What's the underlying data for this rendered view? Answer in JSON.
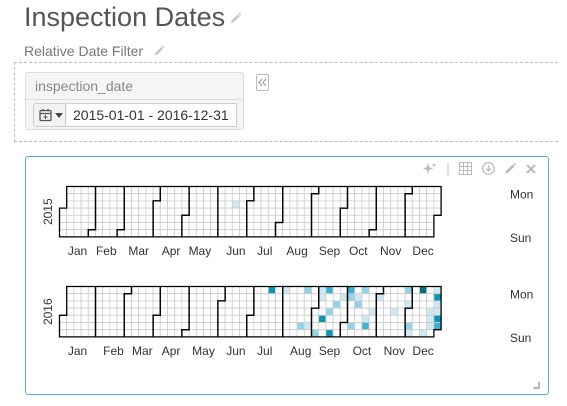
{
  "page": {
    "title": "Inspection Dates"
  },
  "filter": {
    "label": "Relative Date Filter",
    "field_label": "inspection_date",
    "date_range": "2015-01-01 - 2016-12-31"
  },
  "toolbar": {
    "icons": [
      "sparkle-icon",
      "table-icon",
      "download-icon",
      "pencil-icon",
      "close-icon"
    ]
  },
  "chart_data": {
    "type": "heatmap",
    "layout": "calendar",
    "title": "",
    "years": [
      {
        "label": "2015",
        "start_date": "2015-01-01",
        "days": 365,
        "cells": [
          {
            "date": "2015-06-17",
            "level": 1
          }
        ]
      },
      {
        "label": "2016",
        "start_date": "2016-01-01",
        "days": 366,
        "cells": [
          {
            "date": "2016-07-18",
            "level": 4
          },
          {
            "date": "2016-08-01",
            "level": 1
          },
          {
            "date": "2016-08-20",
            "level": 2
          },
          {
            "date": "2016-08-22",
            "level": 2
          },
          {
            "date": "2016-08-27",
            "level": 1
          },
          {
            "date": "2016-09-04",
            "level": 2
          },
          {
            "date": "2016-09-05",
            "level": 1
          },
          {
            "date": "2016-09-06",
            "level": 1
          },
          {
            "date": "2016-09-09",
            "level": 4
          },
          {
            "date": "2016-09-12",
            "level": 3
          },
          {
            "date": "2016-09-15",
            "level": 2
          },
          {
            "date": "2016-09-18",
            "level": 4
          },
          {
            "date": "2016-09-21",
            "level": 2
          },
          {
            "date": "2016-09-27",
            "level": 1
          },
          {
            "date": "2016-10-03",
            "level": 3
          },
          {
            "date": "2016-10-04",
            "level": 2
          },
          {
            "date": "2016-10-08",
            "level": 2
          },
          {
            "date": "2016-10-11",
            "level": 1
          },
          {
            "date": "2016-10-12",
            "level": 2
          },
          {
            "date": "2016-10-17",
            "level": 2
          },
          {
            "date": "2016-10-21",
            "level": 1
          },
          {
            "date": "2016-10-22",
            "level": 3
          },
          {
            "date": "2016-10-27",
            "level": 1
          },
          {
            "date": "2016-11-01",
            "level": 1
          },
          {
            "date": "2016-11-17",
            "level": 1
          },
          {
            "date": "2016-11-28",
            "level": 2
          },
          {
            "date": "2016-11-30",
            "level": 1
          },
          {
            "date": "2016-12-03",
            "level": 2
          },
          {
            "date": "2016-12-04",
            "level": 1
          },
          {
            "date": "2016-12-12",
            "level": 5
          },
          {
            "date": "2016-12-18",
            "level": 1
          },
          {
            "date": "2016-12-22",
            "level": 1
          },
          {
            "date": "2016-12-23",
            "level": 1
          },
          {
            "date": "2016-12-24",
            "level": 1
          },
          {
            "date": "2016-12-26",
            "level": 1
          },
          {
            "date": "2016-12-27",
            "level": 4
          },
          {
            "date": "2016-12-28",
            "level": 1
          },
          {
            "date": "2016-12-29",
            "level": 1
          },
          {
            "date": "2016-12-30",
            "level": 4
          },
          {
            "date": "2016-12-31",
            "level": 3
          }
        ]
      }
    ],
    "month_labels": [
      "Jan",
      "Feb",
      "Mar",
      "Apr",
      "May",
      "Jun",
      "Jul",
      "Aug",
      "Sep",
      "Oct",
      "Nov",
      "Dec"
    ],
    "day_labels": {
      "top": "Mon",
      "bottom": "Sun"
    },
    "colors": {
      "0": "#ffffff",
      "1": "#cdeaf4",
      "2": "#8fd4e8",
      "3": "#36b4d2",
      "4": "#0b97b4",
      "5": "#07727f"
    }
  }
}
